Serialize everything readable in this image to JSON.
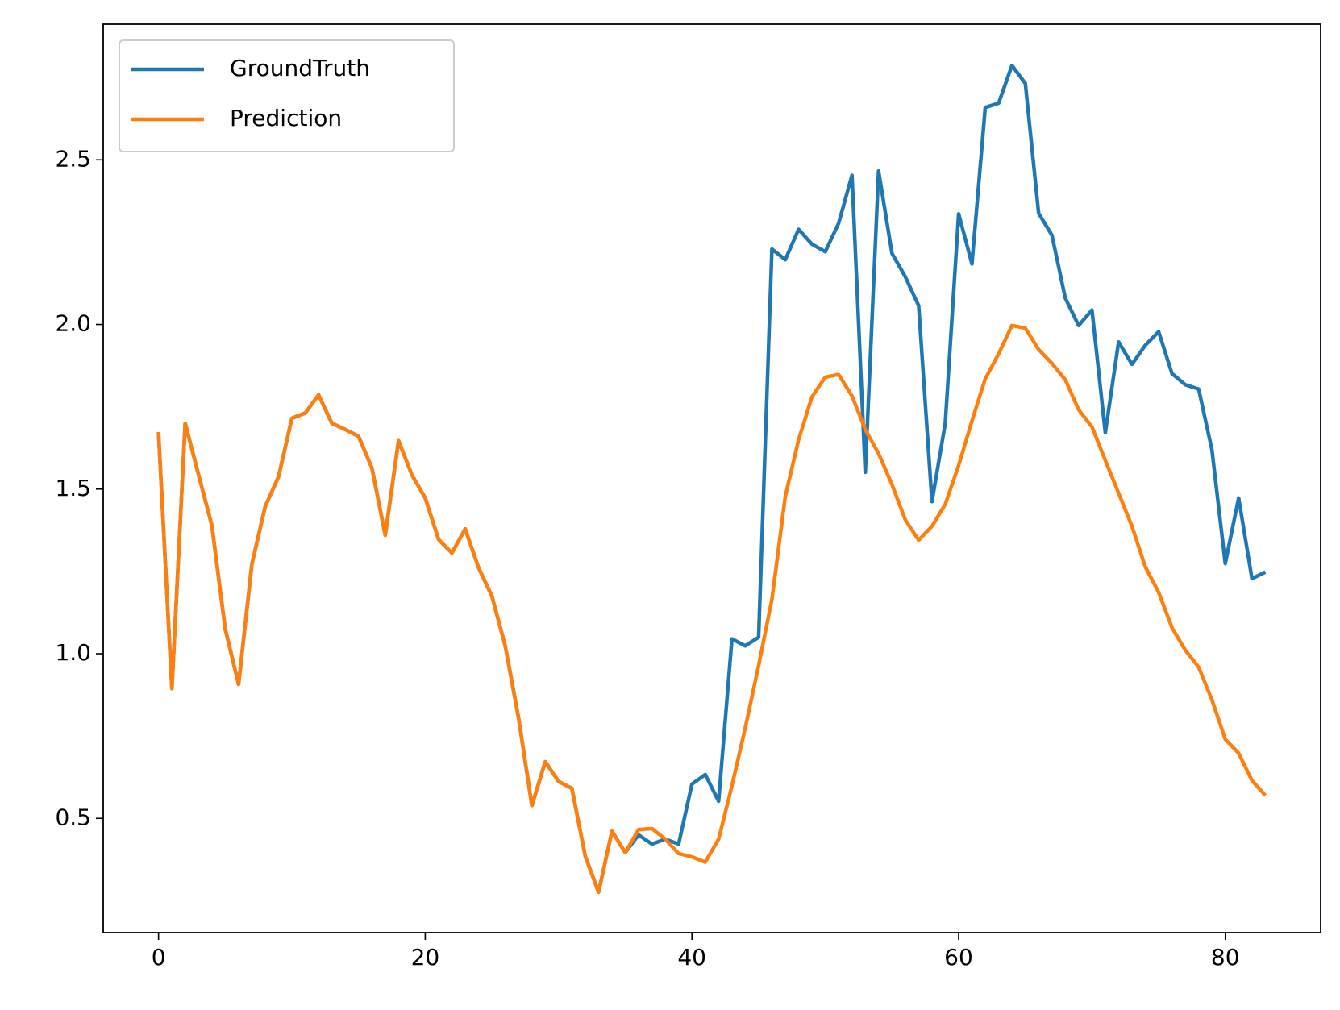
{
  "chart_data": {
    "type": "line",
    "x": [
      0,
      1,
      2,
      3,
      4,
      5,
      6,
      7,
      8,
      9,
      10,
      11,
      12,
      13,
      14,
      15,
      16,
      17,
      18,
      19,
      20,
      21,
      22,
      23,
      24,
      25,
      26,
      27,
      28,
      29,
      30,
      31,
      32,
      33,
      34,
      35,
      36,
      37,
      38,
      39,
      40,
      41,
      42,
      43,
      44,
      45,
      46,
      47,
      48,
      49,
      50,
      51,
      52,
      53,
      54,
      55,
      56,
      57,
      58,
      59,
      60,
      61,
      62,
      63,
      64,
      65,
      66,
      67,
      68,
      69,
      70,
      71,
      72,
      73,
      74,
      75,
      76,
      77,
      78,
      79,
      80,
      81,
      82,
      83
    ],
    "series": [
      {
        "name": "GroundTruth",
        "color": "#1f77b4",
        "values": [
          1.673,
          0.894,
          1.7,
          1.543,
          1.389,
          1.076,
          0.907,
          1.272,
          1.447,
          1.538,
          1.715,
          1.731,
          1.786,
          1.7,
          1.681,
          1.66,
          1.564,
          1.36,
          1.647,
          1.543,
          1.473,
          1.347,
          1.306,
          1.379,
          1.261,
          1.175,
          1.024,
          0.805,
          0.539,
          0.672,
          0.612,
          0.591,
          0.385,
          0.276,
          0.461,
          0.396,
          0.45,
          0.422,
          0.437,
          0.422,
          0.604,
          0.633,
          0.552,
          1.045,
          1.024,
          1.05,
          2.229,
          2.197,
          2.289,
          2.244,
          2.221,
          2.307,
          2.453,
          1.551,
          2.466,
          2.216,
          2.145,
          2.057,
          1.462,
          1.7,
          2.336,
          2.184,
          2.659,
          2.672,
          2.787,
          2.732,
          2.338,
          2.271,
          2.08,
          1.997,
          2.044,
          1.671,
          1.947,
          1.879,
          1.937,
          1.978,
          1.851,
          1.817,
          1.804,
          1.619,
          1.274,
          1.473,
          1.228,
          1.248
        ]
      },
      {
        "name": "Prediction",
        "color": "#ff7f0e",
        "values": [
          1.673,
          0.894,
          1.7,
          1.543,
          1.389,
          1.076,
          0.907,
          1.272,
          1.447,
          1.538,
          1.715,
          1.731,
          1.786,
          1.7,
          1.681,
          1.66,
          1.564,
          1.36,
          1.647,
          1.543,
          1.473,
          1.347,
          1.306,
          1.379,
          1.261,
          1.175,
          1.024,
          0.805,
          0.539,
          0.672,
          0.612,
          0.591,
          0.385,
          0.276,
          0.461,
          0.396,
          0.466,
          0.469,
          0.437,
          0.393,
          0.383,
          0.367,
          0.437,
          0.599,
          0.774,
          0.964,
          1.165,
          1.478,
          1.65,
          1.78,
          1.84,
          1.848,
          1.783,
          1.681,
          1.608,
          1.514,
          1.407,
          1.345,
          1.387,
          1.454,
          1.572,
          1.707,
          1.835,
          1.911,
          1.997,
          1.989,
          1.924,
          1.882,
          1.832,
          1.741,
          1.689,
          1.587,
          1.488,
          1.387,
          1.264,
          1.186,
          1.079,
          1.011,
          0.959,
          0.86,
          0.74,
          0.698,
          0.615,
          0.57
        ]
      }
    ],
    "xlim": [
      -4.15,
      87.15
    ],
    "xticks": [
      0,
      20,
      40,
      60,
      80
    ],
    "ylim": [
      0.153,
      2.912
    ],
    "yticks": [
      0.5,
      {
        "value": 1,
        "label": "1.0"
      },
      1.5,
      {
        "value": 2,
        "label": "2.0"
      },
      2.5
    ],
    "legend": "upper left"
  }
}
